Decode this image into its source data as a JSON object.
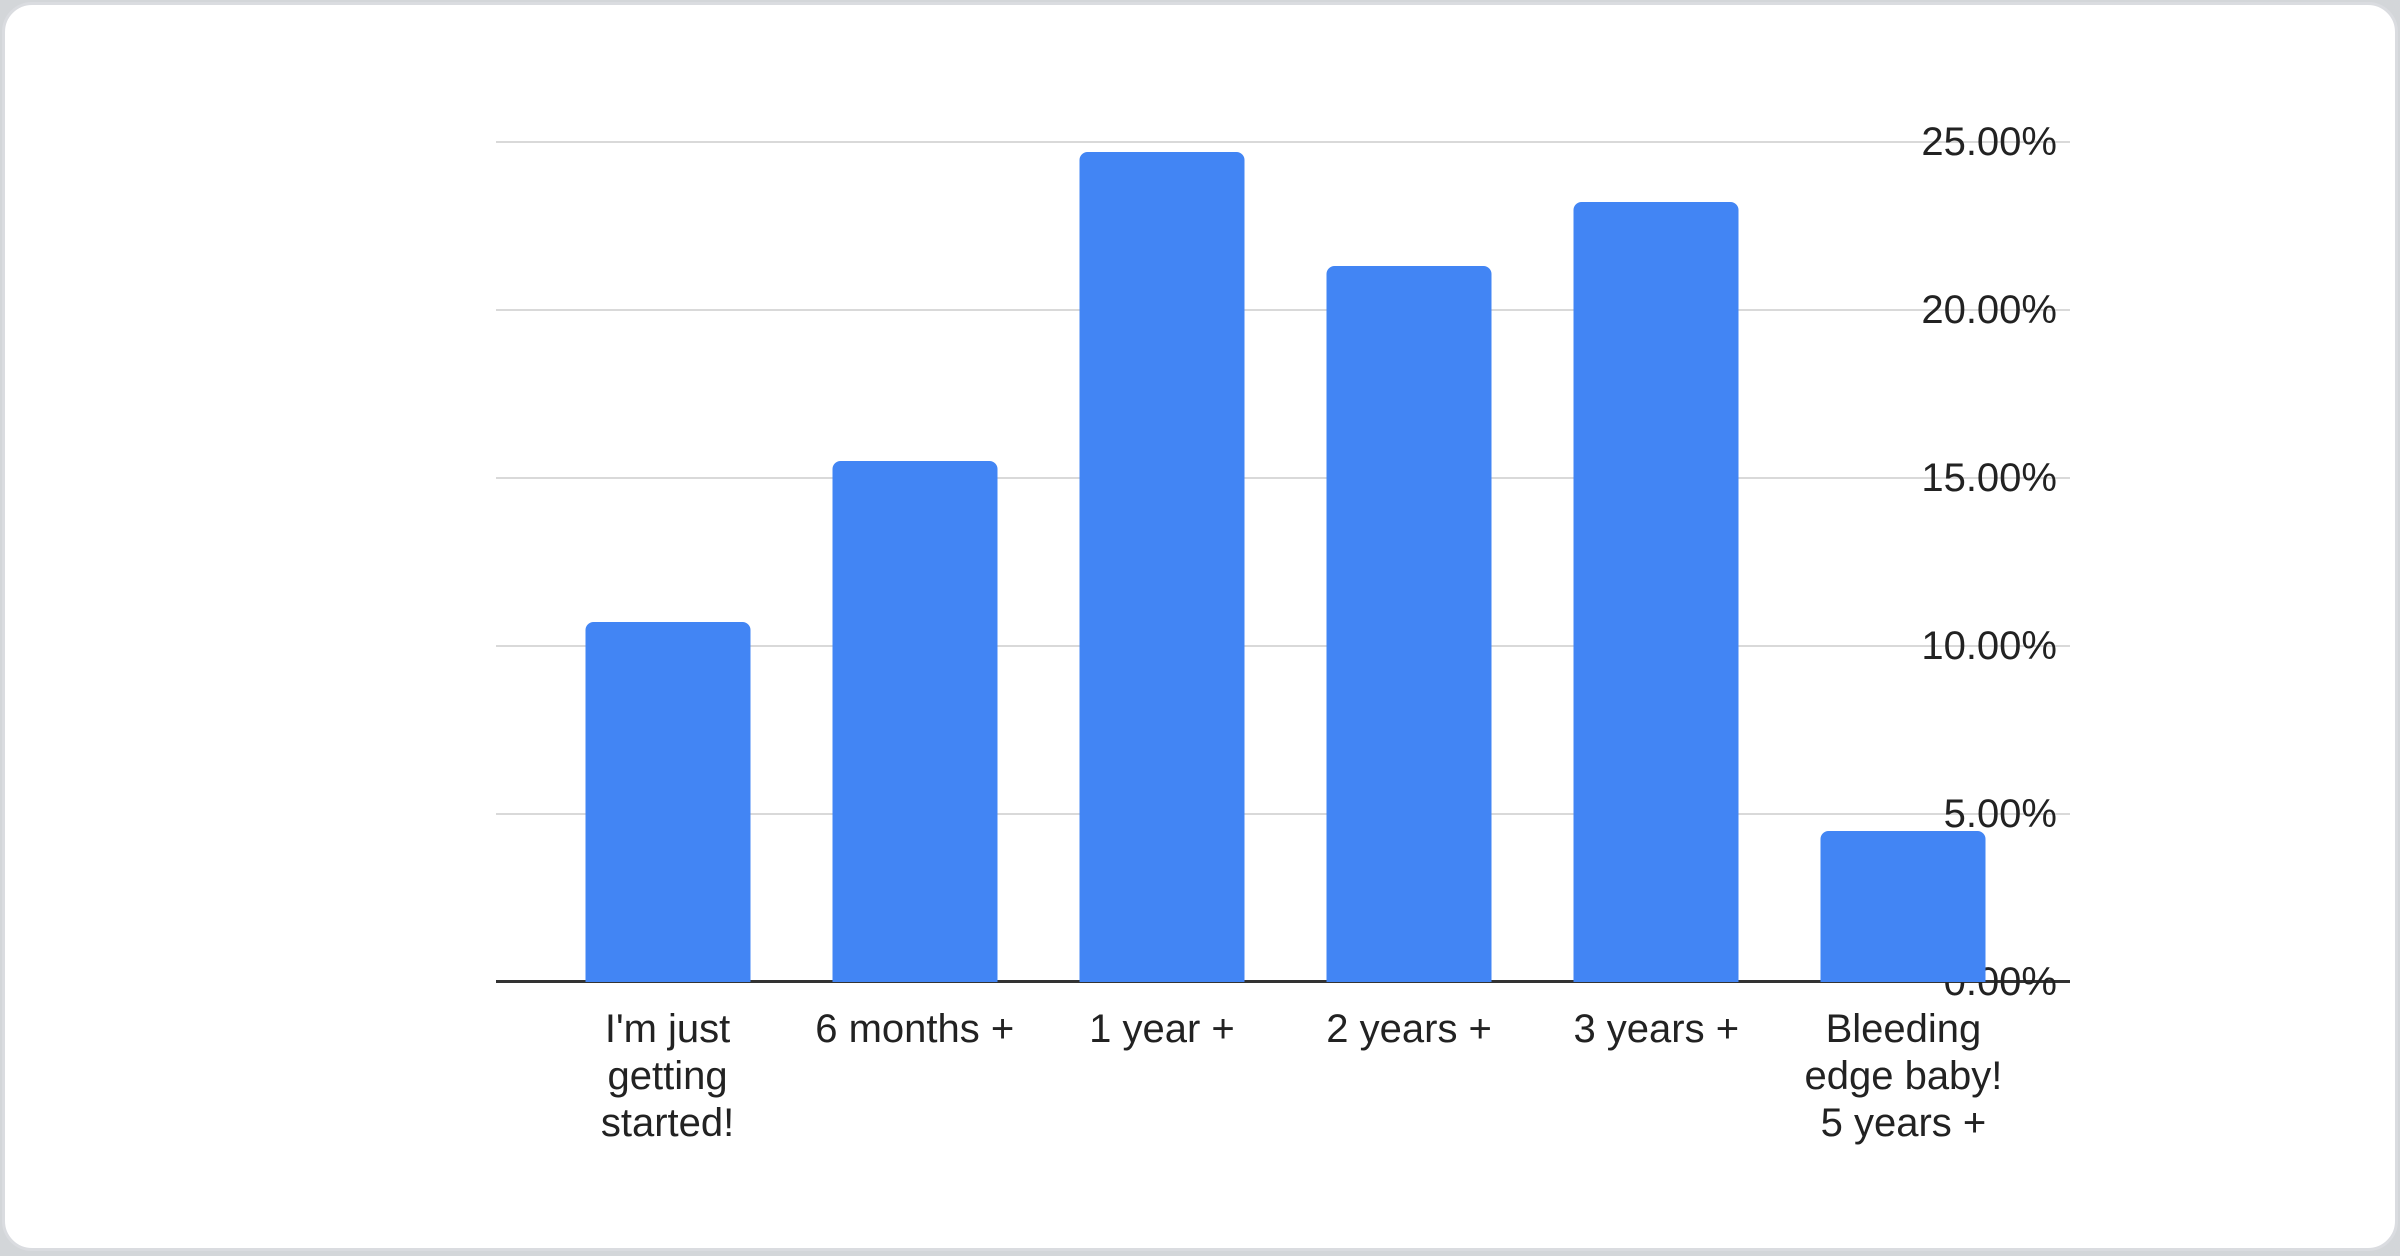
{
  "page": {
    "background_color": "#d3d6d9",
    "card_background": "#ffffff",
    "card_border_color": "#dadce0"
  },
  "chart_data": {
    "type": "bar",
    "title": "",
    "xlabel": "",
    "ylabel": "",
    "categories": [
      "I'm just getting started!",
      "6 months +",
      "1 year +",
      "2 years +",
      "3 years +",
      "Bleeding edge baby! 5 years +"
    ],
    "category_lines": [
      [
        "I'm just",
        "getting",
        "started!"
      ],
      [
        "6 months +"
      ],
      [
        "1 year +"
      ],
      [
        "2 years +"
      ],
      [
        "3 years +"
      ],
      [
        "Bleeding",
        "edge baby!",
        "5 years +"
      ]
    ],
    "values": [
      10.7,
      15.5,
      24.7,
      21.3,
      23.2,
      4.5
    ],
    "value_unit": "%",
    "ylim": [
      0,
      25
    ],
    "ytick_step": 5,
    "ytick_labels": [
      "0.00%",
      "5.00%",
      "10.00%",
      "15.00%",
      "20.00%",
      "25.00%"
    ],
    "grid": true,
    "legend": "none",
    "bar_color": "#4285F4",
    "grid_color": "#d9d9d9",
    "axis_color": "#333333",
    "label_color": "#222222"
  }
}
